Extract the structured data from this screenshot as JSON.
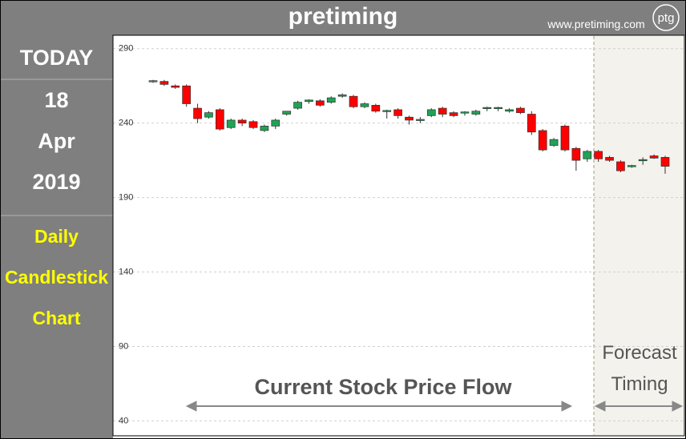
{
  "header": {
    "title": "pretiming",
    "url": "www.pretiming.com",
    "logo": "ptg"
  },
  "sidebar": {
    "today": "TODAY",
    "day": "18",
    "month": "Apr",
    "year": "2019",
    "chart_name": "Daily Candlestick Chart"
  },
  "chart_data": {
    "type": "candlestick",
    "open": [
      268,
      268,
      265,
      265,
      250,
      244,
      249,
      237,
      242,
      241,
      235,
      238,
      246,
      250,
      254.5,
      255,
      254,
      258,
      258,
      251,
      252,
      248,
      249,
      244,
      242,
      245,
      250,
      247,
      247,
      246,
      250,
      250,
      248,
      250,
      246,
      235,
      225,
      238,
      223,
      216,
      221,
      217,
      214,
      211,
      215,
      218,
      217
    ],
    "high": [
      269,
      269,
      266,
      266,
      253,
      248,
      250,
      243,
      243,
      242,
      239,
      243,
      248,
      255,
      256,
      256,
      258,
      260,
      259,
      254,
      253,
      249,
      250,
      245,
      244,
      250,
      251,
      248,
      248,
      249,
      251,
      251,
      250,
      251,
      248,
      236,
      230,
      239,
      224,
      222,
      222,
      218,
      215,
      212,
      217,
      219,
      218
    ],
    "low": [
      267,
      265,
      263,
      251,
      240,
      243,
      235,
      236,
      238,
      236,
      234,
      236,
      245,
      249,
      253,
      251,
      253,
      257,
      250,
      250,
      247,
      243,
      243,
      239,
      240,
      244,
      244,
      244,
      245,
      245,
      248,
      248,
      247,
      246,
      232,
      221,
      224,
      221,
      208,
      214,
      214,
      214,
      207,
      210,
      212,
      216,
      206
    ],
    "close": [
      268.5,
      266,
      264,
      253,
      243,
      247,
      236,
      242,
      240,
      237,
      238,
      242,
      248,
      254,
      255.5,
      252,
      257,
      259,
      251,
      253,
      248,
      248.5,
      245,
      242,
      242.5,
      249,
      246,
      245,
      247.5,
      248,
      250.5,
      250.5,
      249,
      247,
      234,
      222,
      229,
      222,
      215,
      221,
      216,
      215,
      208,
      211.5,
      215.5,
      216.5,
      211
    ],
    "up_color": "#1fa356",
    "down_color": "#ff0000",
    "ylim": [
      30,
      299
    ],
    "yticks": [
      40,
      90,
      140,
      190,
      240,
      290
    ],
    "grid": true,
    "annotations": [
      "Current Stock Price Flow",
      "Forecast Timing"
    ]
  }
}
